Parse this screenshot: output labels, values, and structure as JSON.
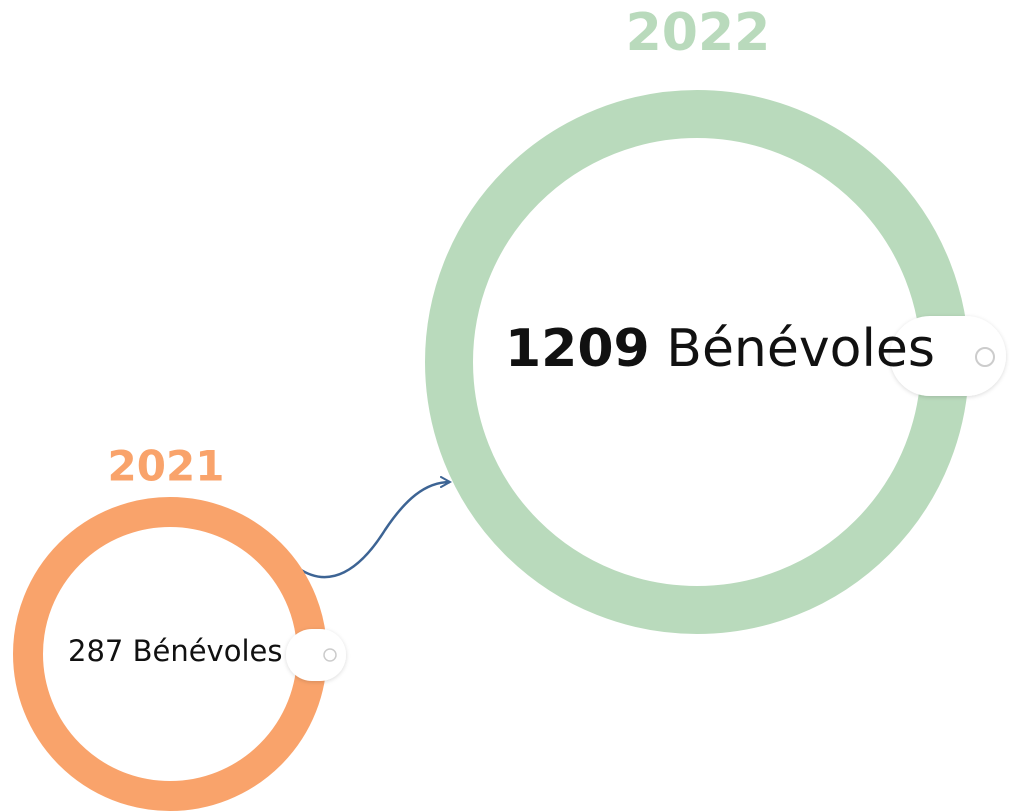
{
  "items": [
    {
      "year": "2021",
      "count": 287,
      "label": "Bénévoles"
    },
    {
      "year": "2022",
      "count": 1209,
      "label": "Bénévoles"
    }
  ]
}
